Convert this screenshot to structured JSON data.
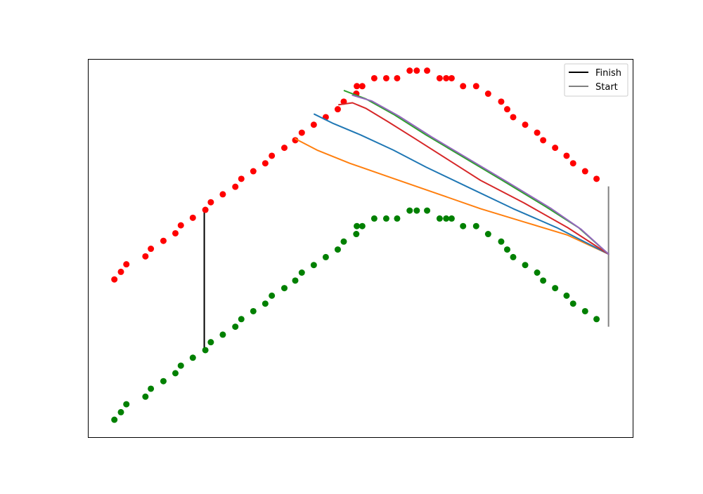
{
  "chart_data": {
    "type": "scatter",
    "title": "",
    "xlabel": "",
    "ylabel": "",
    "axes_visible": false,
    "xlim": [
      0,
      1
    ],
    "ylim": [
      0,
      1
    ],
    "grid": false,
    "legend": {
      "placement": "top-right",
      "entries": [
        {
          "label": "Finish",
          "color": "#000000"
        },
        {
          "label": "Start",
          "color": "#808080"
        }
      ]
    },
    "scatter_series": [
      {
        "color": "#ff0000",
        "points": [
          [
            0.048,
            0.418
          ],
          [
            0.06,
            0.438
          ],
          [
            0.07,
            0.458
          ],
          [
            0.105,
            0.479
          ],
          [
            0.115,
            0.499
          ],
          [
            0.138,
            0.52
          ],
          [
            0.16,
            0.54
          ],
          [
            0.17,
            0.561
          ],
          [
            0.192,
            0.581
          ],
          [
            0.215,
            0.602
          ],
          [
            0.225,
            0.622
          ],
          [
            0.247,
            0.643
          ],
          [
            0.27,
            0.663
          ],
          [
            0.281,
            0.684
          ],
          [
            0.303,
            0.704
          ],
          [
            0.325,
            0.725
          ],
          [
            0.337,
            0.745
          ],
          [
            0.36,
            0.766
          ],
          [
            0.38,
            0.786
          ],
          [
            0.392,
            0.806
          ],
          [
            0.414,
            0.827
          ],
          [
            0.436,
            0.847
          ],
          [
            0.458,
            0.868
          ],
          [
            0.469,
            0.888
          ],
          [
            0.492,
            0.909
          ],
          [
            0.492,
            0.909
          ],
          [
            0.493,
            0.929
          ],
          [
            0.503,
            0.929
          ],
          [
            0.525,
            0.95
          ],
          [
            0.547,
            0.95
          ],
          [
            0.567,
            0.95
          ],
          [
            0.59,
            0.97
          ],
          [
            0.603,
            0.97
          ],
          [
            0.622,
            0.97
          ],
          [
            0.645,
            0.95
          ],
          [
            0.657,
            0.95
          ],
          [
            0.667,
            0.95
          ],
          [
            0.688,
            0.929
          ],
          [
            0.712,
            0.929
          ],
          [
            0.734,
            0.909
          ],
          [
            0.758,
            0.888
          ],
          [
            0.769,
            0.868
          ],
          [
            0.78,
            0.847
          ],
          [
            0.802,
            0.827
          ],
          [
            0.824,
            0.806
          ],
          [
            0.835,
            0.786
          ],
          [
            0.857,
            0.766
          ],
          [
            0.878,
            0.745
          ],
          [
            0.89,
            0.725
          ],
          [
            0.912,
            0.704
          ],
          [
            0.933,
            0.684
          ]
        ]
      },
      {
        "color": "#008000",
        "points": [
          [
            0.048,
            0.047
          ],
          [
            0.06,
            0.067
          ],
          [
            0.07,
            0.088
          ],
          [
            0.105,
            0.108
          ],
          [
            0.115,
            0.129
          ],
          [
            0.138,
            0.149
          ],
          [
            0.16,
            0.17
          ],
          [
            0.17,
            0.19
          ],
          [
            0.192,
            0.211
          ],
          [
            0.215,
            0.231
          ],
          [
            0.225,
            0.252
          ],
          [
            0.247,
            0.272
          ],
          [
            0.27,
            0.293
          ],
          [
            0.281,
            0.313
          ],
          [
            0.303,
            0.334
          ],
          [
            0.325,
            0.354
          ],
          [
            0.337,
            0.375
          ],
          [
            0.36,
            0.395
          ],
          [
            0.38,
            0.415
          ],
          [
            0.392,
            0.436
          ],
          [
            0.414,
            0.456
          ],
          [
            0.436,
            0.477
          ],
          [
            0.458,
            0.497
          ],
          [
            0.469,
            0.518
          ],
          [
            0.492,
            0.538
          ],
          [
            0.493,
            0.559
          ],
          [
            0.503,
            0.559
          ],
          [
            0.525,
            0.579
          ],
          [
            0.547,
            0.579
          ],
          [
            0.567,
            0.579
          ],
          [
            0.59,
            0.6
          ],
          [
            0.603,
            0.6
          ],
          [
            0.622,
            0.6
          ],
          [
            0.645,
            0.579
          ],
          [
            0.657,
            0.579
          ],
          [
            0.667,
            0.579
          ],
          [
            0.688,
            0.559
          ],
          [
            0.712,
            0.559
          ],
          [
            0.734,
            0.538
          ],
          [
            0.758,
            0.518
          ],
          [
            0.769,
            0.497
          ],
          [
            0.78,
            0.477
          ],
          [
            0.802,
            0.456
          ],
          [
            0.824,
            0.436
          ],
          [
            0.835,
            0.415
          ],
          [
            0.857,
            0.395
          ],
          [
            0.878,
            0.375
          ],
          [
            0.89,
            0.354
          ],
          [
            0.912,
            0.334
          ],
          [
            0.933,
            0.313
          ]
        ]
      }
    ],
    "line_series": [
      {
        "color": "#ff7f0e",
        "points": [
          [
            0.38,
            0.79
          ],
          [
            0.42,
            0.76
          ],
          [
            0.48,
            0.725
          ],
          [
            0.56,
            0.685
          ],
          [
            0.64,
            0.645
          ],
          [
            0.72,
            0.605
          ],
          [
            0.8,
            0.57
          ],
          [
            0.88,
            0.535
          ],
          [
            0.955,
            0.485
          ]
        ]
      },
      {
        "color": "#1f77b4",
        "points": [
          [
            0.415,
            0.855
          ],
          [
            0.45,
            0.83
          ],
          [
            0.5,
            0.8
          ],
          [
            0.56,
            0.76
          ],
          [
            0.62,
            0.715
          ],
          [
            0.7,
            0.66
          ],
          [
            0.78,
            0.605
          ],
          [
            0.86,
            0.555
          ],
          [
            0.955,
            0.485
          ]
        ]
      },
      {
        "color": "#d62728",
        "points": [
          [
            0.46,
            0.88
          ],
          [
            0.485,
            0.885
          ],
          [
            0.51,
            0.87
          ],
          [
            0.55,
            0.835
          ],
          [
            0.6,
            0.79
          ],
          [
            0.66,
            0.735
          ],
          [
            0.72,
            0.68
          ],
          [
            0.8,
            0.62
          ],
          [
            0.88,
            0.555
          ],
          [
            0.955,
            0.485
          ]
        ]
      },
      {
        "color": "#2ca02c",
        "points": [
          [
            0.47,
            0.917
          ],
          [
            0.51,
            0.895
          ],
          [
            0.56,
            0.855
          ],
          [
            0.62,
            0.8
          ],
          [
            0.69,
            0.74
          ],
          [
            0.76,
            0.68
          ],
          [
            0.84,
            0.61
          ],
          [
            0.9,
            0.555
          ],
          [
            0.955,
            0.485
          ]
        ]
      },
      {
        "color": "#9467bd",
        "points": [
          [
            0.485,
            0.905
          ],
          [
            0.52,
            0.89
          ],
          [
            0.57,
            0.85
          ],
          [
            0.63,
            0.795
          ],
          [
            0.7,
            0.735
          ],
          [
            0.77,
            0.675
          ],
          [
            0.85,
            0.605
          ],
          [
            0.905,
            0.55
          ],
          [
            0.955,
            0.485
          ]
        ]
      }
    ],
    "finish_segment": {
      "color": "#000000",
      "x": 0.213,
      "y_top": 0.602,
      "y_bottom": 0.231
    },
    "start_segment": {
      "color": "#808080",
      "x": 0.955,
      "y_top": 0.664,
      "y_bottom": 0.293
    }
  }
}
